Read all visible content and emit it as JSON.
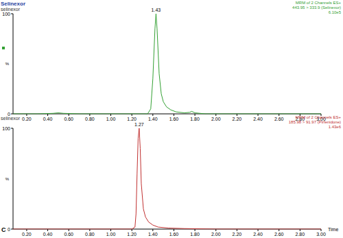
{
  "chart_data": [
    {
      "type": "line",
      "title": "Selinexor",
      "subtitle": "selinexor",
      "channel": [
        "MRM of 2 Channels ES+",
        "443.95 > 333.9 (Selinexor)",
        "6.10e5"
      ],
      "ylabel": "%",
      "color": "#33a033",
      "x": [
        0.07,
        0.3,
        0.45,
        0.5,
        0.55,
        0.7,
        1.0,
        1.2,
        1.35,
        1.38,
        1.4,
        1.42,
        1.43,
        1.44,
        1.46,
        1.48,
        1.5,
        1.53,
        1.57,
        1.62,
        1.7,
        1.75,
        1.77,
        1.8,
        1.9,
        2.2,
        2.6,
        3.0
      ],
      "values": [
        0,
        0,
        0.5,
        1,
        0.5,
        0,
        0,
        0,
        0,
        5,
        35,
        85,
        100,
        85,
        40,
        20,
        12,
        7,
        4,
        2,
        1,
        1.5,
        2.5,
        1,
        0,
        0,
        0,
        0
      ],
      "annotations": [
        {
          "text": "1.43",
          "x": 1.43,
          "y": 100
        }
      ],
      "xlim": [
        0.07,
        3.0
      ],
      "ylim": [
        0,
        100
      ],
      "xticks": [
        {
          "value": 0.2,
          "label": "0.20"
        },
        {
          "value": 0.4,
          "label": "0.40"
        },
        {
          "value": 0.6,
          "label": "0.60"
        },
        {
          "value": 0.8,
          "label": "0.80"
        },
        {
          "value": 1.0,
          "label": "1.00"
        },
        {
          "value": 1.2,
          "label": "1.20"
        },
        {
          "value": 1.4,
          "label": "1.40"
        },
        {
          "value": 1.6,
          "label": "1.60"
        },
        {
          "value": 1.8,
          "label": "1.80"
        },
        {
          "value": 2.0,
          "label": "2.00"
        },
        {
          "value": 2.2,
          "label": "2.20"
        },
        {
          "value": 2.4,
          "label": "2.40"
        },
        {
          "value": 2.6,
          "label": "2.60"
        },
        {
          "value": 2.8,
          "label": "2.80"
        },
        {
          "value": 3.0,
          "label": "3.00"
        }
      ],
      "yticks": [
        0,
        100
      ],
      "grid": false
    },
    {
      "type": "line",
      "subtitle": "selinexor",
      "channel": [
        "MRM of 2 Channels ES+",
        "185.98 > 91.97 (Pirfenidone)",
        "1.43e6"
      ],
      "ylabel": "%",
      "xlabel": "Time",
      "panel_label": "C",
      "color": "#c03030",
      "x": [
        0.07,
        0.5,
        1.0,
        1.2,
        1.23,
        1.24,
        1.25,
        1.26,
        1.27,
        1.28,
        1.29,
        1.31,
        1.33,
        1.36,
        1.4,
        1.45,
        1.55,
        1.7,
        2.0,
        3.0
      ],
      "values": [
        0,
        0,
        0,
        0,
        2,
        15,
        55,
        90,
        100,
        80,
        45,
        20,
        12,
        7,
        4,
        2,
        1,
        0.5,
        0,
        0
      ],
      "annotations": [
        {
          "text": "1.27",
          "x": 1.27,
          "y": 100
        }
      ],
      "xlim": [
        0.07,
        3.0
      ],
      "ylim": [
        0,
        100
      ],
      "xticks": [
        {
          "value": 0.2,
          "label": "0.20"
        },
        {
          "value": 0.4,
          "label": "0.40"
        },
        {
          "value": 0.6,
          "label": "0.60"
        },
        {
          "value": 0.8,
          "label": "0.80"
        },
        {
          "value": 1.0,
          "label": "1.00"
        },
        {
          "value": 1.2,
          "label": "1.20"
        },
        {
          "value": 1.4,
          "label": "1.40"
        },
        {
          "value": 1.6,
          "label": "1.60"
        },
        {
          "value": 1.8,
          "label": "1.80"
        },
        {
          "value": 2.0,
          "label": "2.00"
        },
        {
          "value": 2.2,
          "label": "2.20"
        },
        {
          "value": 2.4,
          "label": "2.40"
        },
        {
          "value": 2.6,
          "label": "2.60"
        },
        {
          "value": 2.8,
          "label": "2.80"
        },
        {
          "value": 3.0,
          "label": "3.00"
        }
      ],
      "yticks": [
        0,
        100
      ],
      "grid": false
    }
  ]
}
